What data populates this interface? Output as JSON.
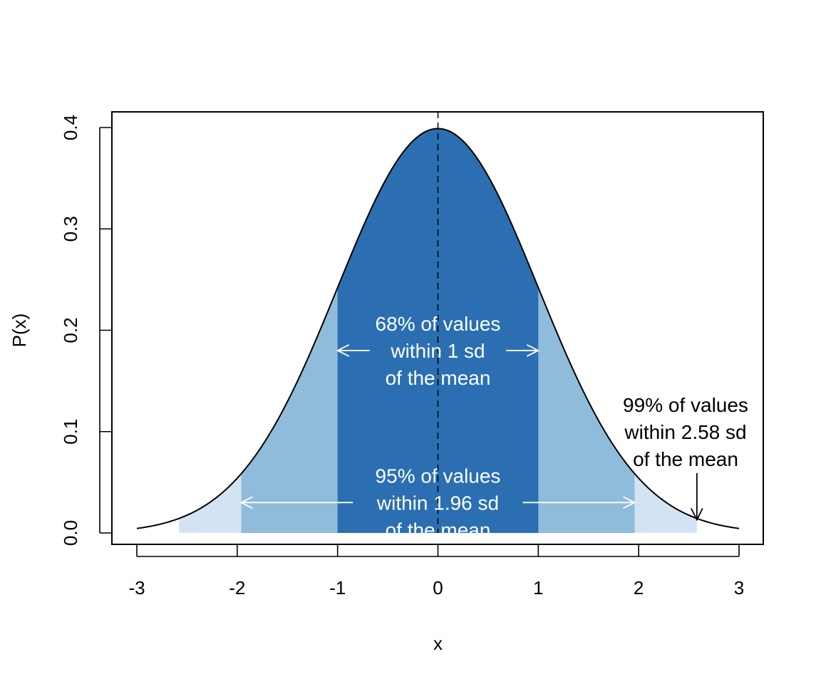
{
  "chart_data": {
    "type": "area",
    "title": "",
    "xlabel": "x",
    "ylabel": "P(x)",
    "xlim": [
      -3,
      3
    ],
    "ylim": [
      0,
      0.4
    ],
    "xticks": [
      -3,
      -2,
      -1,
      0,
      1,
      2,
      3
    ],
    "yticks": [
      0.0,
      0.1,
      0.2,
      0.3,
      0.4
    ],
    "xtick_labels": [
      "-3",
      "-2",
      "-1",
      "0",
      "1",
      "2",
      "3"
    ],
    "ytick_labels": [
      "0.0",
      "0.1",
      "0.2",
      "0.3",
      "0.4"
    ],
    "curve": {
      "distribution": "standard normal",
      "mean": 0,
      "sd": 1,
      "x_range": [
        -3,
        3
      ]
    },
    "mean_line": {
      "x": 0,
      "style": "dashed"
    },
    "shaded_bands": [
      {
        "from": -2.58,
        "to": 2.58,
        "color": "#d4e3f3"
      },
      {
        "from": -1.96,
        "to": 1.96,
        "color": "#8fbcda"
      },
      {
        "from": -1,
        "to": 1,
        "color": "#2b6fb2"
      }
    ],
    "grid": false,
    "annotations": [
      {
        "lines": [
          "68% of values",
          "within 1 sd",
          "of the mean"
        ],
        "color": "#ffffff",
        "arrow_span": [
          -1,
          1
        ],
        "arrow_y": 0.18
      },
      {
        "lines": [
          "95% of values",
          "within 1.96 sd",
          "of the mean"
        ],
        "color": "#ffffff",
        "arrow_span": [
          -1.96,
          1.96
        ],
        "arrow_y": 0.03
      },
      {
        "lines": [
          "99% of values",
          "within 2.58 sd",
          "of the mean"
        ],
        "color": "#000000",
        "arrow_to": {
          "x": 2.58,
          "y": 0.013
        }
      }
    ]
  }
}
